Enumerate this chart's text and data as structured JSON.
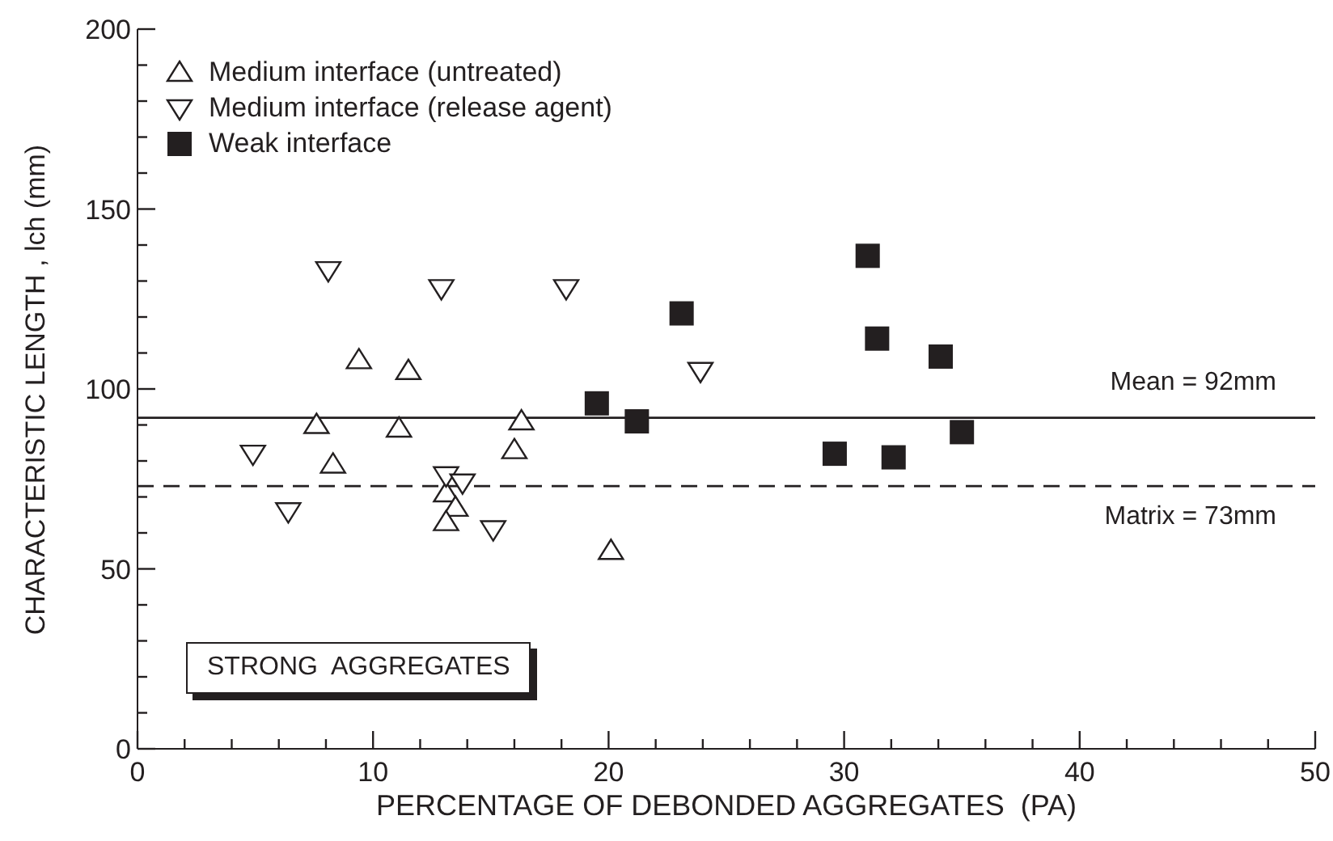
{
  "chart_data": {
    "type": "scatter",
    "xlabel": "PERCENTAGE OF DEBONDED AGGREGATES  (PA)",
    "ylabel": "CHARACTERISTIC LENGTH , lch (mm)",
    "xlim": [
      0,
      50
    ],
    "ylim": [
      0,
      200
    ],
    "xticks": [
      0,
      {
        "value": 2,
        "label": null
      },
      {
        "value": 4,
        "label": null
      },
      {
        "value": 6,
        "label": null
      },
      {
        "value": 8,
        "label": null
      },
      10,
      {
        "value": 12,
        "label": null
      },
      {
        "value": 14,
        "label": null
      },
      {
        "value": 16,
        "label": null
      },
      {
        "value": 18,
        "label": null
      },
      20,
      {
        "value": 22,
        "label": null
      },
      {
        "value": 24,
        "label": null
      },
      {
        "value": 26,
        "label": null
      },
      {
        "value": 28,
        "label": null
      },
      30,
      {
        "value": 32,
        "label": null
      },
      {
        "value": 34,
        "label": null
      },
      {
        "value": 36,
        "label": null
      },
      {
        "value": 38,
        "label": null
      },
      40,
      {
        "value": 42,
        "label": null
      },
      {
        "value": 44,
        "label": null
      },
      {
        "value": 46,
        "label": null
      },
      {
        "value": 48,
        "label": null
      },
      50
    ],
    "yticks": [
      0,
      {
        "value": 10,
        "label": null
      },
      {
        "value": 20,
        "label": null
      },
      {
        "value": 30,
        "label": null
      },
      {
        "value": 40,
        "label": null
      },
      50,
      {
        "value": 60,
        "label": null
      },
      {
        "value": 70,
        "label": null
      },
      {
        "value": 80,
        "label": null
      },
      {
        "value": 90,
        "label": null
      },
      100,
      {
        "value": 110,
        "label": null
      },
      {
        "value": 120,
        "label": null
      },
      {
        "value": 130,
        "label": null
      },
      {
        "value": 140,
        "label": null
      },
      150,
      {
        "value": 160,
        "label": null
      },
      {
        "value": 170,
        "label": null
      },
      {
        "value": 180,
        "label": null
      },
      {
        "value": 190,
        "label": null
      },
      200
    ],
    "grid": false,
    "legend": "top left",
    "series": [
      {
        "name": "Medium interface (untreated)",
        "color": "#231f20",
        "marker": "triangle",
        "x": [
          9.4,
          11.5,
          7.6,
          11.1,
          8.3,
          16.3,
          16.0,
          13.1,
          13.5,
          13.1,
          20.1
        ],
        "values": [
          108,
          105,
          90,
          89,
          79,
          91,
          83,
          71,
          67,
          63,
          55
        ]
      },
      {
        "name": "Medium interface (release agent)",
        "color": "#231f20",
        "marker": "triangle-down",
        "x": [
          8.1,
          4.9,
          6.4,
          12.9,
          18.2,
          13.1,
          13.8,
          15.1,
          23.9
        ],
        "values": [
          133,
          82,
          66,
          128,
          128,
          76,
          74,
          61,
          105
        ]
      },
      {
        "name": "Weak interface",
        "color": "#231f20",
        "marker": "square",
        "x": [
          19.5,
          21.2,
          23.1,
          31.0,
          31.4,
          34.1,
          29.6,
          32.1,
          35.0
        ],
        "values": [
          96,
          91,
          121,
          137,
          114,
          109,
          82,
          81,
          88
        ]
      }
    ],
    "ref_lines": [
      {
        "axis": "y",
        "value": 92,
        "label": "Mean = 92mm",
        "line_style": "solid",
        "color": "#231f20"
      },
      {
        "axis": "y",
        "value": 73,
        "label": "Matrix = 73mm",
        "line_style": "dashed",
        "color": "#231f20"
      }
    ],
    "annotations": [
      "STRONG  AGGREGATES"
    ]
  }
}
